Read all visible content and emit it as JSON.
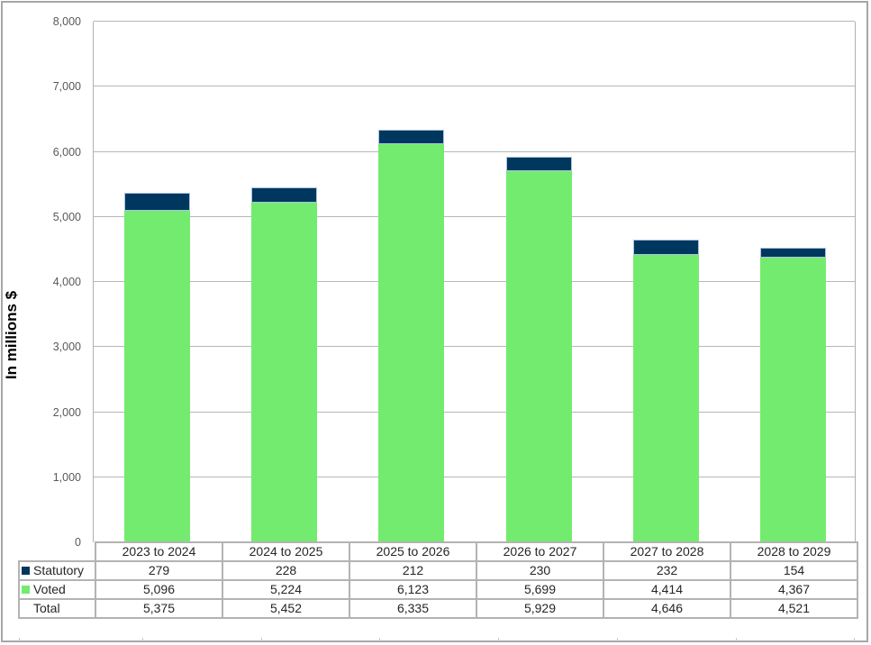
{
  "chart_data": {
    "type": "bar",
    "stacked": true,
    "title": "",
    "xlabel": "",
    "ylabel": "In millions $",
    "ylim": [
      0,
      8000
    ],
    "yticks": [
      "0",
      "1,000",
      "2,000",
      "3,000",
      "4,000",
      "5,000",
      "6,000",
      "7,000",
      "8,000"
    ],
    "grid": true,
    "legend_position": "data-table",
    "categories": [
      "2023 to 2024",
      "2024 to 2025",
      "2025 to 2026",
      "2026 to 2027",
      "2027 to 2028",
      "2028 to 2029"
    ],
    "series": [
      {
        "name": "Statutory",
        "color": "#00375f",
        "values": [
          279,
          228,
          212,
          230,
          232,
          154
        ]
      },
      {
        "name": "Voted",
        "color": "#73eb6e",
        "values": [
          5096,
          5224,
          6123,
          5699,
          4414,
          4367
        ]
      }
    ],
    "totals": [
      5375,
      5452,
      6335,
      5929,
      4646,
      4521
    ]
  },
  "table": {
    "header": [
      "2023 to 2024",
      "2024 to 2025",
      "2025 to 2026",
      "2026 to 2027",
      "2027 to 2028",
      "2028 to 2029"
    ],
    "rows": [
      {
        "label": "Statutory",
        "color": "#00375f",
        "cells": [
          "279",
          "228",
          "212",
          "230",
          "232",
          "154"
        ]
      },
      {
        "label": "Voted",
        "color": "#73eb6e",
        "cells": [
          "5,096",
          "5,224",
          "6,123",
          "5,699",
          "4,414",
          "4,367"
        ]
      },
      {
        "label": "Total",
        "color": "",
        "cells": [
          "5,375",
          "5,452",
          "6,335",
          "5,929",
          "4,646",
          "4,521"
        ]
      }
    ]
  }
}
